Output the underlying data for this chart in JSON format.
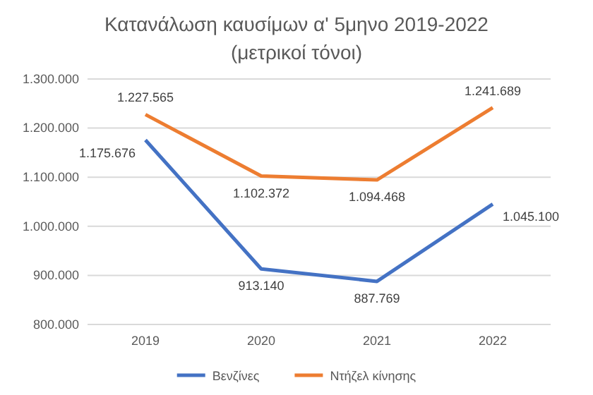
{
  "chart_data": {
    "type": "line",
    "title": "Κατανάλωση καυσίμων α' 5μηνο 2019-2022",
    "subtitle": "(μετρικοί τόνοι)",
    "categories": [
      "2019",
      "2020",
      "2021",
      "2022"
    ],
    "series": [
      {
        "name": "Βενζίνες",
        "color": "#4472c4",
        "values": [
          1175676,
          913140,
          887769,
          1045100
        ],
        "value_labels": [
          "1.175.676",
          "913.140",
          "887.769",
          "1.045.100"
        ]
      },
      {
        "name": "Ντήζελ κίνησης",
        "color": "#ed7d31",
        "values": [
          1227565,
          1102372,
          1094468,
          1241689
        ],
        "value_labels": [
          "1.227.565",
          "1.102.372",
          "1.094.468",
          "1.241.689"
        ]
      }
    ],
    "ylim": [
      800000,
      1300000
    ],
    "yticks": [
      {
        "value": 800000,
        "label": "800.000"
      },
      {
        "value": 900000,
        "label": "900.000"
      },
      {
        "value": 1000000,
        "label": "1.000.000"
      },
      {
        "value": 1100000,
        "label": "1.100.000"
      },
      {
        "value": 1200000,
        "label": "1.200.000"
      },
      {
        "value": 1300000,
        "label": "1.300.000"
      }
    ],
    "grid": "y",
    "legend": "bottom",
    "marker": "none",
    "line_style": "solid"
  }
}
